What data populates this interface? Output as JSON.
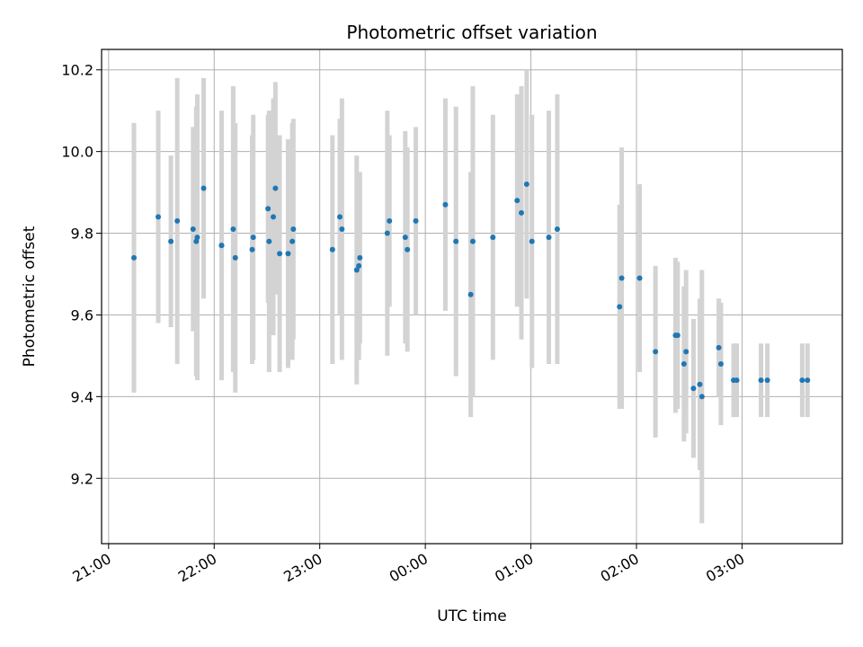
{
  "chart_data": {
    "type": "scatter",
    "title": "Photometric offset variation",
    "xlabel": "UTC time",
    "ylabel": "Photometric offset",
    "xlim": [
      "20:56",
      "27:57"
    ],
    "ylim": [
      9.04,
      10.25
    ],
    "xticks": [
      "21:00",
      "22:00",
      "23:00",
      "00:00",
      "01:00",
      "02:00",
      "03:00"
    ],
    "yticks": [
      "9.2",
      "9.4",
      "9.6",
      "9.8",
      "10.0",
      "10.2"
    ],
    "grid": true,
    "point_color": "#1f77b4",
    "errorbar_color": "#d3d3d3",
    "x_unit": "hours UTC since 00:00 of the first night (values above 24 are the following day)",
    "series": [
      {
        "x": [
          21.24,
          21.47,
          21.59,
          21.65,
          21.8,
          21.83,
          21.84,
          21.9,
          22.07,
          22.07,
          22.18,
          22.2,
          22.36,
          22.37,
          22.51,
          22.52,
          22.56,
          22.58,
          22.62,
          22.7,
          22.74,
          22.75,
          23.12,
          23.19,
          23.21,
          23.35,
          23.37,
          23.38,
          23.64,
          23.66,
          23.81,
          23.83,
          23.91,
          24.19,
          24.29,
          24.43,
          24.45,
          24.64,
          24.87,
          24.91,
          24.96,
          25.01,
          25.17,
          25.25,
          25.84,
          25.86,
          26.03,
          26.18,
          26.37,
          26.39,
          26.45,
          26.47,
          26.54,
          26.6,
          26.62,
          26.78,
          26.8,
          26.92,
          26.95,
          27.18,
          27.24,
          27.57,
          27.62
        ],
        "y": [
          9.74,
          9.84,
          9.78,
          9.83,
          9.81,
          9.78,
          9.79,
          9.91,
          9.77,
          9.77,
          9.81,
          9.74,
          9.76,
          9.79,
          9.86,
          9.78,
          9.84,
          9.91,
          9.75,
          9.75,
          9.78,
          9.81,
          9.76,
          9.84,
          9.81,
          9.71,
          9.72,
          9.74,
          9.8,
          9.83,
          9.79,
          9.76,
          9.83,
          9.87,
          9.78,
          9.65,
          9.78,
          9.79,
          9.88,
          9.85,
          9.92,
          9.78,
          9.79,
          9.81,
          9.62,
          9.69,
          9.69,
          9.51,
          9.55,
          9.55,
          9.48,
          9.51,
          9.42,
          9.43,
          9.4,
          9.52,
          9.48,
          9.44,
          9.44,
          9.44,
          9.44,
          9.44,
          9.44
        ],
        "yerr": [
          0.33,
          0.26,
          0.21,
          0.35,
          0.25,
          0.33,
          0.35,
          0.27,
          0.33,
          0.31,
          0.35,
          0.33,
          0.28,
          0.3,
          0.23,
          0.32,
          0.29,
          0.26,
          0.29,
          0.28,
          0.29,
          0.27,
          0.28,
          0.24,
          0.32,
          0.28,
          0.23,
          0.21,
          0.3,
          0.21,
          0.26,
          0.25,
          0.23,
          0.26,
          0.33,
          0.3,
          0.38,
          0.3,
          0.26,
          0.31,
          0.28,
          0.31,
          0.31,
          0.33,
          0.25,
          0.32,
          0.23,
          0.21,
          0.19,
          0.18,
          0.19,
          0.2,
          0.17,
          0.21,
          0.31,
          0.12,
          0.15,
          0.09,
          0.09,
          0.09,
          0.09,
          0.09,
          0.09
        ]
      }
    ]
  }
}
